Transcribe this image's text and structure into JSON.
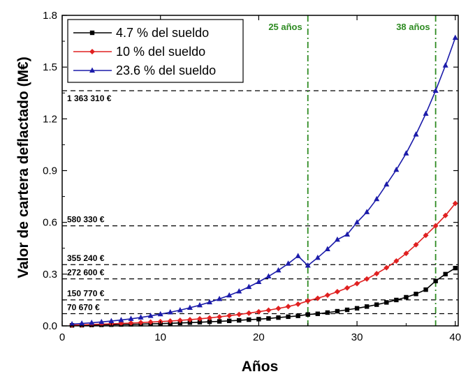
{
  "chart_data": {
    "type": "line",
    "xlabel": "Años",
    "ylabel": "Valor de cartera deflactado (M€)",
    "xlim": [
      0,
      40.3
    ],
    "ylim": [
      0,
      1.8
    ],
    "xticks": [
      0,
      10,
      20,
      30,
      40
    ],
    "xtick_labels": [
      "0",
      "10",
      "20",
      "30",
      "40"
    ],
    "yticks": [
      0.0,
      0.3,
      0.6,
      0.9,
      1.2,
      1.5,
      1.8
    ],
    "ytick_labels": [
      "0.0",
      "0.3",
      "0.6",
      "0.9",
      "1.2",
      "1.5",
      "1.8"
    ],
    "legend_position": "top-left",
    "x": [
      1,
      2,
      3,
      4,
      5,
      6,
      7,
      8,
      9,
      10,
      11,
      12,
      13,
      14,
      15,
      16,
      17,
      18,
      19,
      20,
      21,
      22,
      23,
      24,
      25,
      26,
      27,
      28,
      29,
      30,
      31,
      32,
      33,
      34,
      35,
      36,
      37,
      38,
      39,
      40
    ],
    "series": [
      {
        "name": "4.7 % del sueldo",
        "color": "#000000",
        "marker": "square",
        "values": [
          0.003,
          0.004,
          0.005,
          0.006,
          0.007,
          0.008,
          0.009,
          0.01,
          0.012,
          0.013,
          0.015,
          0.017,
          0.019,
          0.021,
          0.024,
          0.026,
          0.029,
          0.032,
          0.036,
          0.039,
          0.043,
          0.048,
          0.053,
          0.058,
          0.066,
          0.07,
          0.077,
          0.085,
          0.093,
          0.102,
          0.112,
          0.123,
          0.136,
          0.15,
          0.166,
          0.185,
          0.21,
          0.26,
          0.3,
          0.335
        ]
      },
      {
        "name": "10 % del sueldo",
        "color": "#e02020",
        "marker": "diamond",
        "values": [
          0.005,
          0.006,
          0.008,
          0.01,
          0.012,
          0.014,
          0.016,
          0.019,
          0.022,
          0.025,
          0.028,
          0.032,
          0.036,
          0.041,
          0.046,
          0.052,
          0.059,
          0.066,
          0.074,
          0.082,
          0.091,
          0.101,
          0.112,
          0.126,
          0.145,
          0.16,
          0.178,
          0.198,
          0.22,
          0.245,
          0.272,
          0.303,
          0.337,
          0.376,
          0.42,
          0.47,
          0.525,
          0.58,
          0.64,
          0.71
        ]
      },
      {
        "name": "23.6 % del sueldo",
        "color": "#1c1caa",
        "marker": "triangle",
        "values": [
          0.01,
          0.014,
          0.018,
          0.023,
          0.028,
          0.034,
          0.041,
          0.049,
          0.058,
          0.068,
          0.079,
          0.091,
          0.105,
          0.12,
          0.137,
          0.156,
          0.177,
          0.2,
          0.226,
          0.255,
          0.287,
          0.322,
          0.361,
          0.405,
          0.35,
          0.395,
          0.445,
          0.5,
          0.53,
          0.6,
          0.66,
          0.735,
          0.82,
          0.905,
          1.0,
          1.11,
          1.23,
          1.363,
          1.51,
          1.67
        ]
      }
    ],
    "horizontal_refs": [
      {
        "value": 1.363,
        "label": "1 363 310 €"
      },
      {
        "value": 0.58,
        "label": "580 330 €"
      },
      {
        "value": 0.355,
        "label": "355 240 €"
      },
      {
        "value": 0.2726,
        "label": "272 600 €"
      },
      {
        "value": 0.1508,
        "label": "150 770 €"
      },
      {
        "value": 0.0707,
        "label": "70 670 €"
      }
    ],
    "vertical_refs": [
      {
        "value": 25,
        "label": "25 años",
        "color": "#2e8b22"
      },
      {
        "value": 38,
        "label": "38 años",
        "color": "#2e8b22"
      }
    ]
  }
}
